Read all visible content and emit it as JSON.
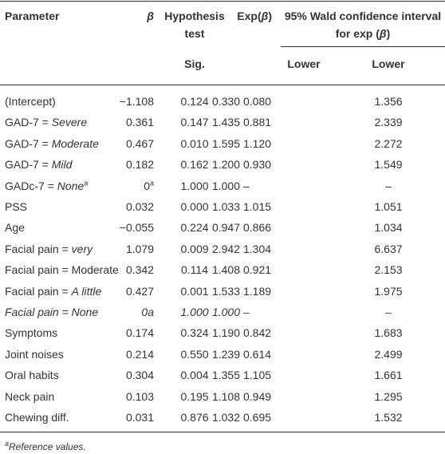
{
  "table": {
    "header": [
      [
        {
          "text": "Parameter"
        }
      ],
      [
        {
          "text": "β",
          "style": "italic"
        }
      ],
      [
        {
          "text": "Hypothesis test"
        }
      ],
      [
        {
          "text": "Exp("
        },
        {
          "text": "β",
          "style": "italic"
        },
        {
          "text": ")"
        }
      ],
      [
        {
          "text": "95% Wald confidence interval for exp ("
        },
        {
          "text": "β",
          "style": "italic"
        },
        {
          "text": ")"
        }
      ]
    ],
    "subheader": [
      "Sig.",
      "Lower",
      "Lower"
    ],
    "rows": [
      {
        "cells": [
          "(Intercept)",
          "−1.108",
          "0.124",
          "0.330",
          "0.080",
          "1.356"
        ]
      },
      {
        "cells": [
          [
            {
              "text": "GAD-7 = "
            },
            {
              "text": "Severe",
              "style": "italic"
            }
          ],
          "0.361",
          "0.147",
          "1.435",
          "0.881",
          "2.339"
        ]
      },
      {
        "cells": [
          [
            {
              "text": "GAD-7 = "
            },
            {
              "text": "Moderate",
              "style": "italic"
            }
          ],
          "0.467",
          "0.010",
          "1.595",
          "1.120",
          "2.272"
        ]
      },
      {
        "cells": [
          [
            {
              "text": "GAD-7 = "
            },
            {
              "text": "Mild",
              "style": "italic"
            }
          ],
          "0.182",
          "0.162",
          "1.200",
          "0.930",
          "1.549"
        ]
      },
      {
        "cells": [
          [
            {
              "text": "GADc-7 = "
            },
            {
              "text": "None",
              "style": "italic"
            },
            {
              "text": "a",
              "style": "sup"
            }
          ],
          [
            {
              "text": "0"
            },
            {
              "text": "a",
              "style": "sup"
            }
          ],
          "1.000",
          "1.000",
          "–",
          "–"
        ]
      },
      {
        "cells": [
          "PSS",
          "0.032",
          "0.000",
          "1.033",
          "1.015",
          "1.051"
        ]
      },
      {
        "cells": [
          "Age",
          "−0.055",
          "0.224",
          "0.947",
          "0.866",
          "1.034"
        ]
      },
      {
        "cells": [
          [
            {
              "text": "Facial pain = "
            },
            {
              "text": "very",
              "style": "italic"
            }
          ],
          "1.079",
          "0.009",
          "2.942",
          "1.304",
          "6.637"
        ]
      },
      {
        "cells": [
          "Facial pain = Moderate",
          "0.342",
          "0.114",
          "1.408",
          "0.921",
          "2.153"
        ]
      },
      {
        "cells": [
          [
            {
              "text": "Facial pain = "
            },
            {
              "text": "A little",
              "style": "italic"
            }
          ],
          "0.427",
          "0.001",
          "1.533",
          "1.189",
          "1.975"
        ]
      },
      {
        "style": "italic",
        "cells": [
          "Facial pain = None",
          "0a",
          "1.000",
          "1.000",
          "–",
          "–"
        ]
      },
      {
        "cells": [
          "Symptoms",
          "0.174",
          "0.324",
          "1.190",
          "0.842",
          "1.683"
        ]
      },
      {
        "cells": [
          "Joint noises",
          "0.214",
          "0.550",
          "1.239",
          "0.614",
          "2.499"
        ]
      },
      {
        "cells": [
          "Oral habits",
          "0.304",
          "0.004",
          "1.355",
          "1.105",
          "1.661"
        ]
      },
      {
        "cells": [
          "Neck pain",
          "0.103",
          "0.195",
          "1.108",
          "0.949",
          "1.295"
        ]
      },
      {
        "cells": [
          "Chewing diff.",
          "0.031",
          "0.876",
          "1.032",
          "0.695",
          "1.532"
        ]
      }
    ]
  },
  "footnote": [
    {
      "text": "a",
      "style": "sup"
    },
    {
      "text": "Reference values.",
      "style": "italic"
    }
  ]
}
